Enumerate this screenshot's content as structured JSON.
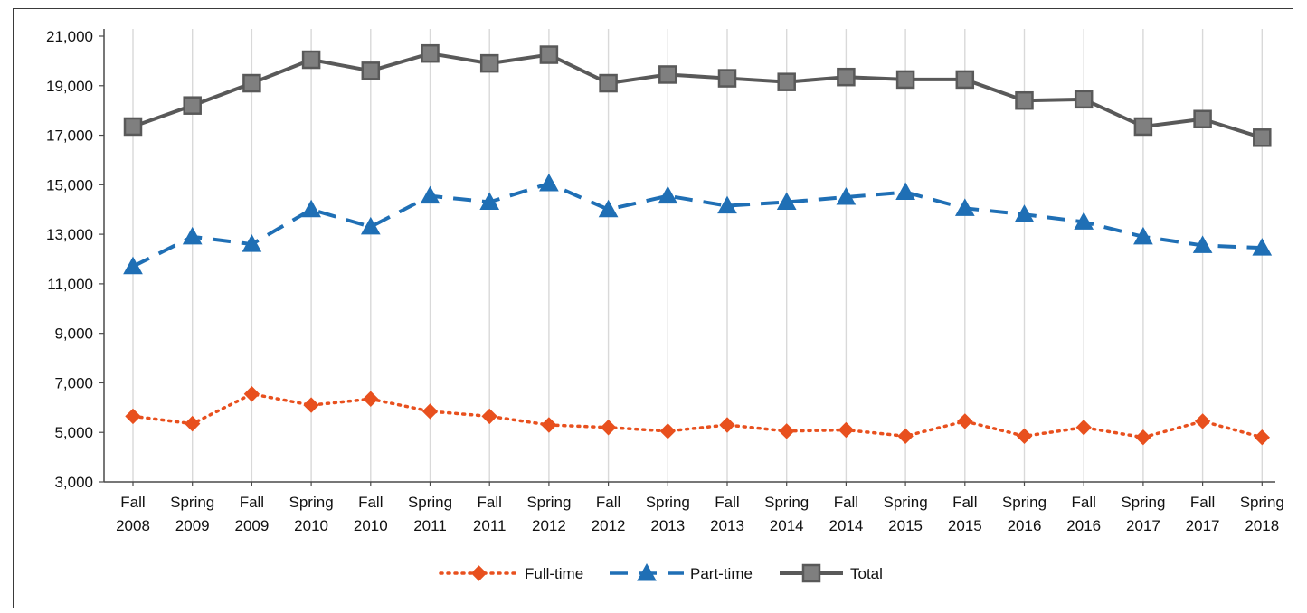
{
  "chart_data": {
    "type": "line",
    "title": "",
    "xlabel": "",
    "ylabel": "",
    "ylim": [
      3000,
      21000
    ],
    "yticks": [
      3000,
      5000,
      7000,
      9000,
      11000,
      13000,
      15000,
      17000,
      19000,
      21000
    ],
    "ytick_labels": [
      "3,000",
      "5,000",
      "7,000",
      "9,000",
      "11,000",
      "13,000",
      "15,000",
      "17,000",
      "19,000",
      "21,000"
    ],
    "categories": [
      [
        "Fall",
        "2008"
      ],
      [
        "Spring",
        "2009"
      ],
      [
        "Fall",
        "2009"
      ],
      [
        "Spring",
        "2010"
      ],
      [
        "Fall",
        "2010"
      ],
      [
        "Spring",
        "2011"
      ],
      [
        "Fall",
        "2011"
      ],
      [
        "Spring",
        "2012"
      ],
      [
        "Fall",
        "2012"
      ],
      [
        "Spring",
        "2013"
      ],
      [
        "Fall",
        "2013"
      ],
      [
        "Spring",
        "2014"
      ],
      [
        "Fall",
        "2014"
      ],
      [
        "Spring",
        "2015"
      ],
      [
        "Fall",
        "2015"
      ],
      [
        "Spring",
        "2016"
      ],
      [
        "Fall",
        "2016"
      ],
      [
        "Spring",
        "2017"
      ],
      [
        "Fall",
        "2017"
      ],
      [
        "Spring",
        "2018"
      ]
    ],
    "vertical_gridlines": true,
    "horizontal_gridlines": false,
    "legend_position": "bottom",
    "series": [
      {
        "name": "Full-time",
        "color": "#e8501e",
        "line_style": "dotted",
        "marker": "diamond",
        "values": [
          5650,
          5350,
          6550,
          6100,
          6350,
          5850,
          5650,
          5300,
          5200,
          5050,
          5300,
          5050,
          5100,
          4850,
          5450,
          4850,
          5200,
          4800,
          5450,
          4800
        ]
      },
      {
        "name": "Part-time",
        "color": "#1f6fb5",
        "line_style": "dashed",
        "marker": "triangle",
        "values": [
          11700,
          12900,
          12600,
          14000,
          13300,
          14550,
          14300,
          15050,
          14000,
          14550,
          14150,
          14300,
          14500,
          14700,
          14050,
          13800,
          13500,
          12900,
          12550,
          12450
        ]
      },
      {
        "name": "Total",
        "color": "#595959",
        "line_style": "solid",
        "marker": "square",
        "values": [
          17350,
          18200,
          19100,
          20050,
          19600,
          20300,
          19900,
          20250,
          19100,
          19450,
          19300,
          19150,
          19350,
          19250,
          19250,
          18400,
          18450,
          17350,
          17650,
          16900
        ]
      }
    ]
  }
}
